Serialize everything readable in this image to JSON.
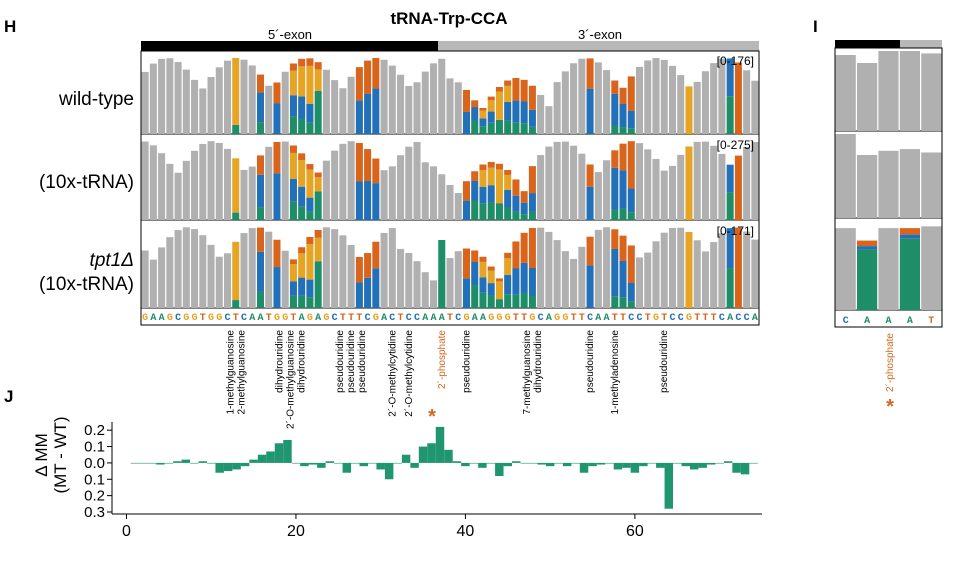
{
  "panels": {
    "H": "H",
    "I": "I",
    "J": "J"
  },
  "title": "tRNA-Trp-CCA",
  "exons": [
    "5´-exon",
    "3´-exon"
  ],
  "tracks": [
    {
      "label": "wild-type",
      "label_em": "",
      "range": "[0-176]"
    },
    {
      "label": "(10x-tRNA)",
      "label_em": "",
      "range": "[0-275]"
    },
    {
      "label": "(10x-tRNA)",
      "label_em": "tpt1Δ",
      "range": "[0-171]"
    }
  ],
  "sequence": "GAAGCGGTGGCTCAATGGTAGAGCTTTCGACTCCAAATCGAAGGGTTGCAGGTTCAATTCCTGTCCGTTTCACCA",
  "panel_i_sequence": "CAAAT",
  "colors": {
    "A": "#1e8e68",
    "C": "#2270b8",
    "G": "#e6a424",
    "T": "#d9641c",
    "ref": "#b0b0b0",
    "phosphate": "#d2691e",
    "diff": "#1f9670"
  },
  "annotations": [
    {
      "pos": 12,
      "lines": [
        "1-methylguanosine",
        "2-methylguanosine"
      ]
    },
    {
      "pos": 18,
      "lines": [
        "dihydrouridine",
        "2´-O-methylguanosine"
      ]
    },
    {
      "pos": 20,
      "lines": [
        "dihydrouridine"
      ]
    },
    {
      "pos": 26,
      "lines": [
        "pseudouridine",
        "pseudouridine",
        "pseudouridine"
      ]
    },
    {
      "pos": 31,
      "lines": [
        "2´-O-methylcytidine"
      ]
    },
    {
      "pos": 33,
      "lines": [
        "2´-O-methylcytidine"
      ]
    },
    {
      "pos": 37,
      "lines": [
        "2´-phosphate"
      ],
      "orange": true
    },
    {
      "pos": 40,
      "lines": [
        "pseudouridine"
      ]
    },
    {
      "pos": 48,
      "lines": [
        "7-methylguanosine",
        "dihydrouridine"
      ]
    },
    {
      "pos": 55,
      "lines": [
        "pseudouridine"
      ]
    },
    {
      "pos": 58,
      "lines": [
        "1-methyladenosine"
      ]
    },
    {
      "pos": 64,
      "lines": [
        "pseudouridine"
      ]
    }
  ],
  "panel_i_annotation": "2´-phosphate",
  "asterisk": "*",
  "chart_data": {
    "type": "bar",
    "title": "tRNA-Trp-CCA",
    "xlabel": "",
    "ylabel": "Δ MM\n(MT - WT)",
    "x": [
      1,
      2,
      3,
      4,
      5,
      6,
      7,
      8,
      9,
      10,
      11,
      12,
      13,
      14,
      15,
      16,
      17,
      18,
      19,
      20,
      21,
      22,
      23,
      24,
      25,
      26,
      27,
      28,
      29,
      30,
      31,
      32,
      33,
      34,
      35,
      36,
      37,
      38,
      39,
      40,
      41,
      42,
      43,
      44,
      45,
      46,
      47,
      48,
      49,
      50,
      51,
      52,
      53,
      54,
      55,
      56,
      57,
      58,
      59,
      60,
      61,
      62,
      63,
      64,
      65,
      66,
      67,
      68,
      69,
      70,
      71,
      72,
      73,
      74
    ],
    "values": [
      0,
      0,
      0,
      -0.01,
      0,
      0.01,
      0.02,
      0,
      0.01,
      0,
      -0.06,
      -0.05,
      -0.04,
      -0.02,
      0.02,
      0.05,
      0.07,
      0.12,
      0.14,
      0,
      -0.02,
      -0.01,
      -0.03,
      0.01,
      0,
      -0.06,
      0,
      -0.02,
      0,
      -0.04,
      -0.1,
      0,
      0.05,
      -0.03,
      0.1,
      0.12,
      0.22,
      0.08,
      0.01,
      -0.02,
      0,
      -0.03,
      0,
      -0.08,
      -0.02,
      0.01,
      0,
      0,
      -0.01,
      -0.02,
      0,
      -0.02,
      0,
      -0.06,
      -0.02,
      -0.01,
      0,
      -0.04,
      -0.03,
      -0.06,
      -0.02,
      0,
      -0.03,
      -0.28,
      0,
      -0.02,
      -0.04,
      -0.03,
      -0.01,
      0,
      0.01,
      -0.06,
      -0.07,
      0
    ],
    "xticks": [
      0,
      20,
      40,
      60
    ],
    "yticks": [
      {
        "value": 0.2,
        "label": "0.2"
      },
      {
        "value": 0.1,
        "label": "0.1"
      },
      {
        "value": 0,
        "label": "0.0"
      },
      {
        "value": -0.1,
        "label": "0.1"
      },
      {
        "value": -0.2,
        "label": "0.2"
      },
      {
        "value": -0.3,
        "label": "0.3"
      }
    ],
    "xlim": [
      -1,
      75
    ],
    "ylim": [
      -0.3,
      0.25
    ],
    "highlight": {
      "x": 37,
      "marker": "*"
    },
    "grid": false
  }
}
